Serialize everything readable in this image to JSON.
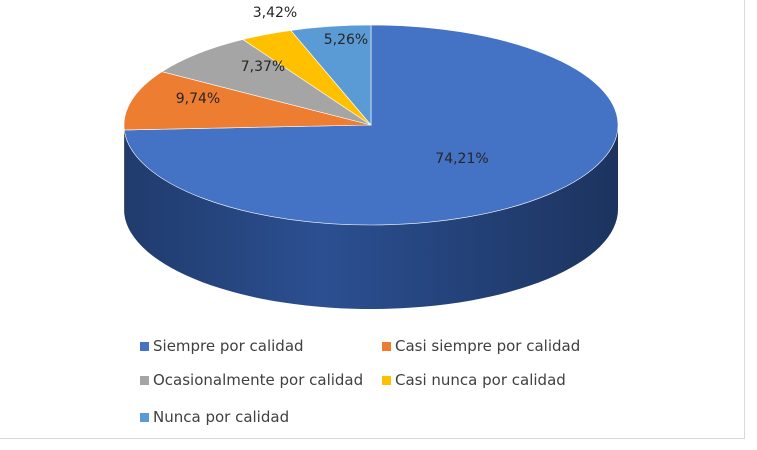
{
  "chart_data": {
    "type": "pie",
    "style": "3d",
    "categories": [
      "Siempre por calidad",
      "Casi siempre por calidad",
      "Ocasionalmente por calidad",
      "Casi nunca por calidad",
      "Nunca por calidad"
    ],
    "values": [
      74.21,
      9.74,
      7.37,
      3.42,
      5.26
    ],
    "data_labels": [
      "74,21%",
      "9,74%",
      "7,37%",
      "3,42%",
      "5,26%"
    ],
    "colors": [
      "#4472c4",
      "#ed7d31",
      "#a5a5a5",
      "#ffc000",
      "#5b9bd5"
    ],
    "side_colors": [
      "#2b4f91",
      "#b75a18",
      "#7a7a7a",
      "#c89300",
      "#3a76ad"
    ],
    "legend_position": "bottom"
  }
}
